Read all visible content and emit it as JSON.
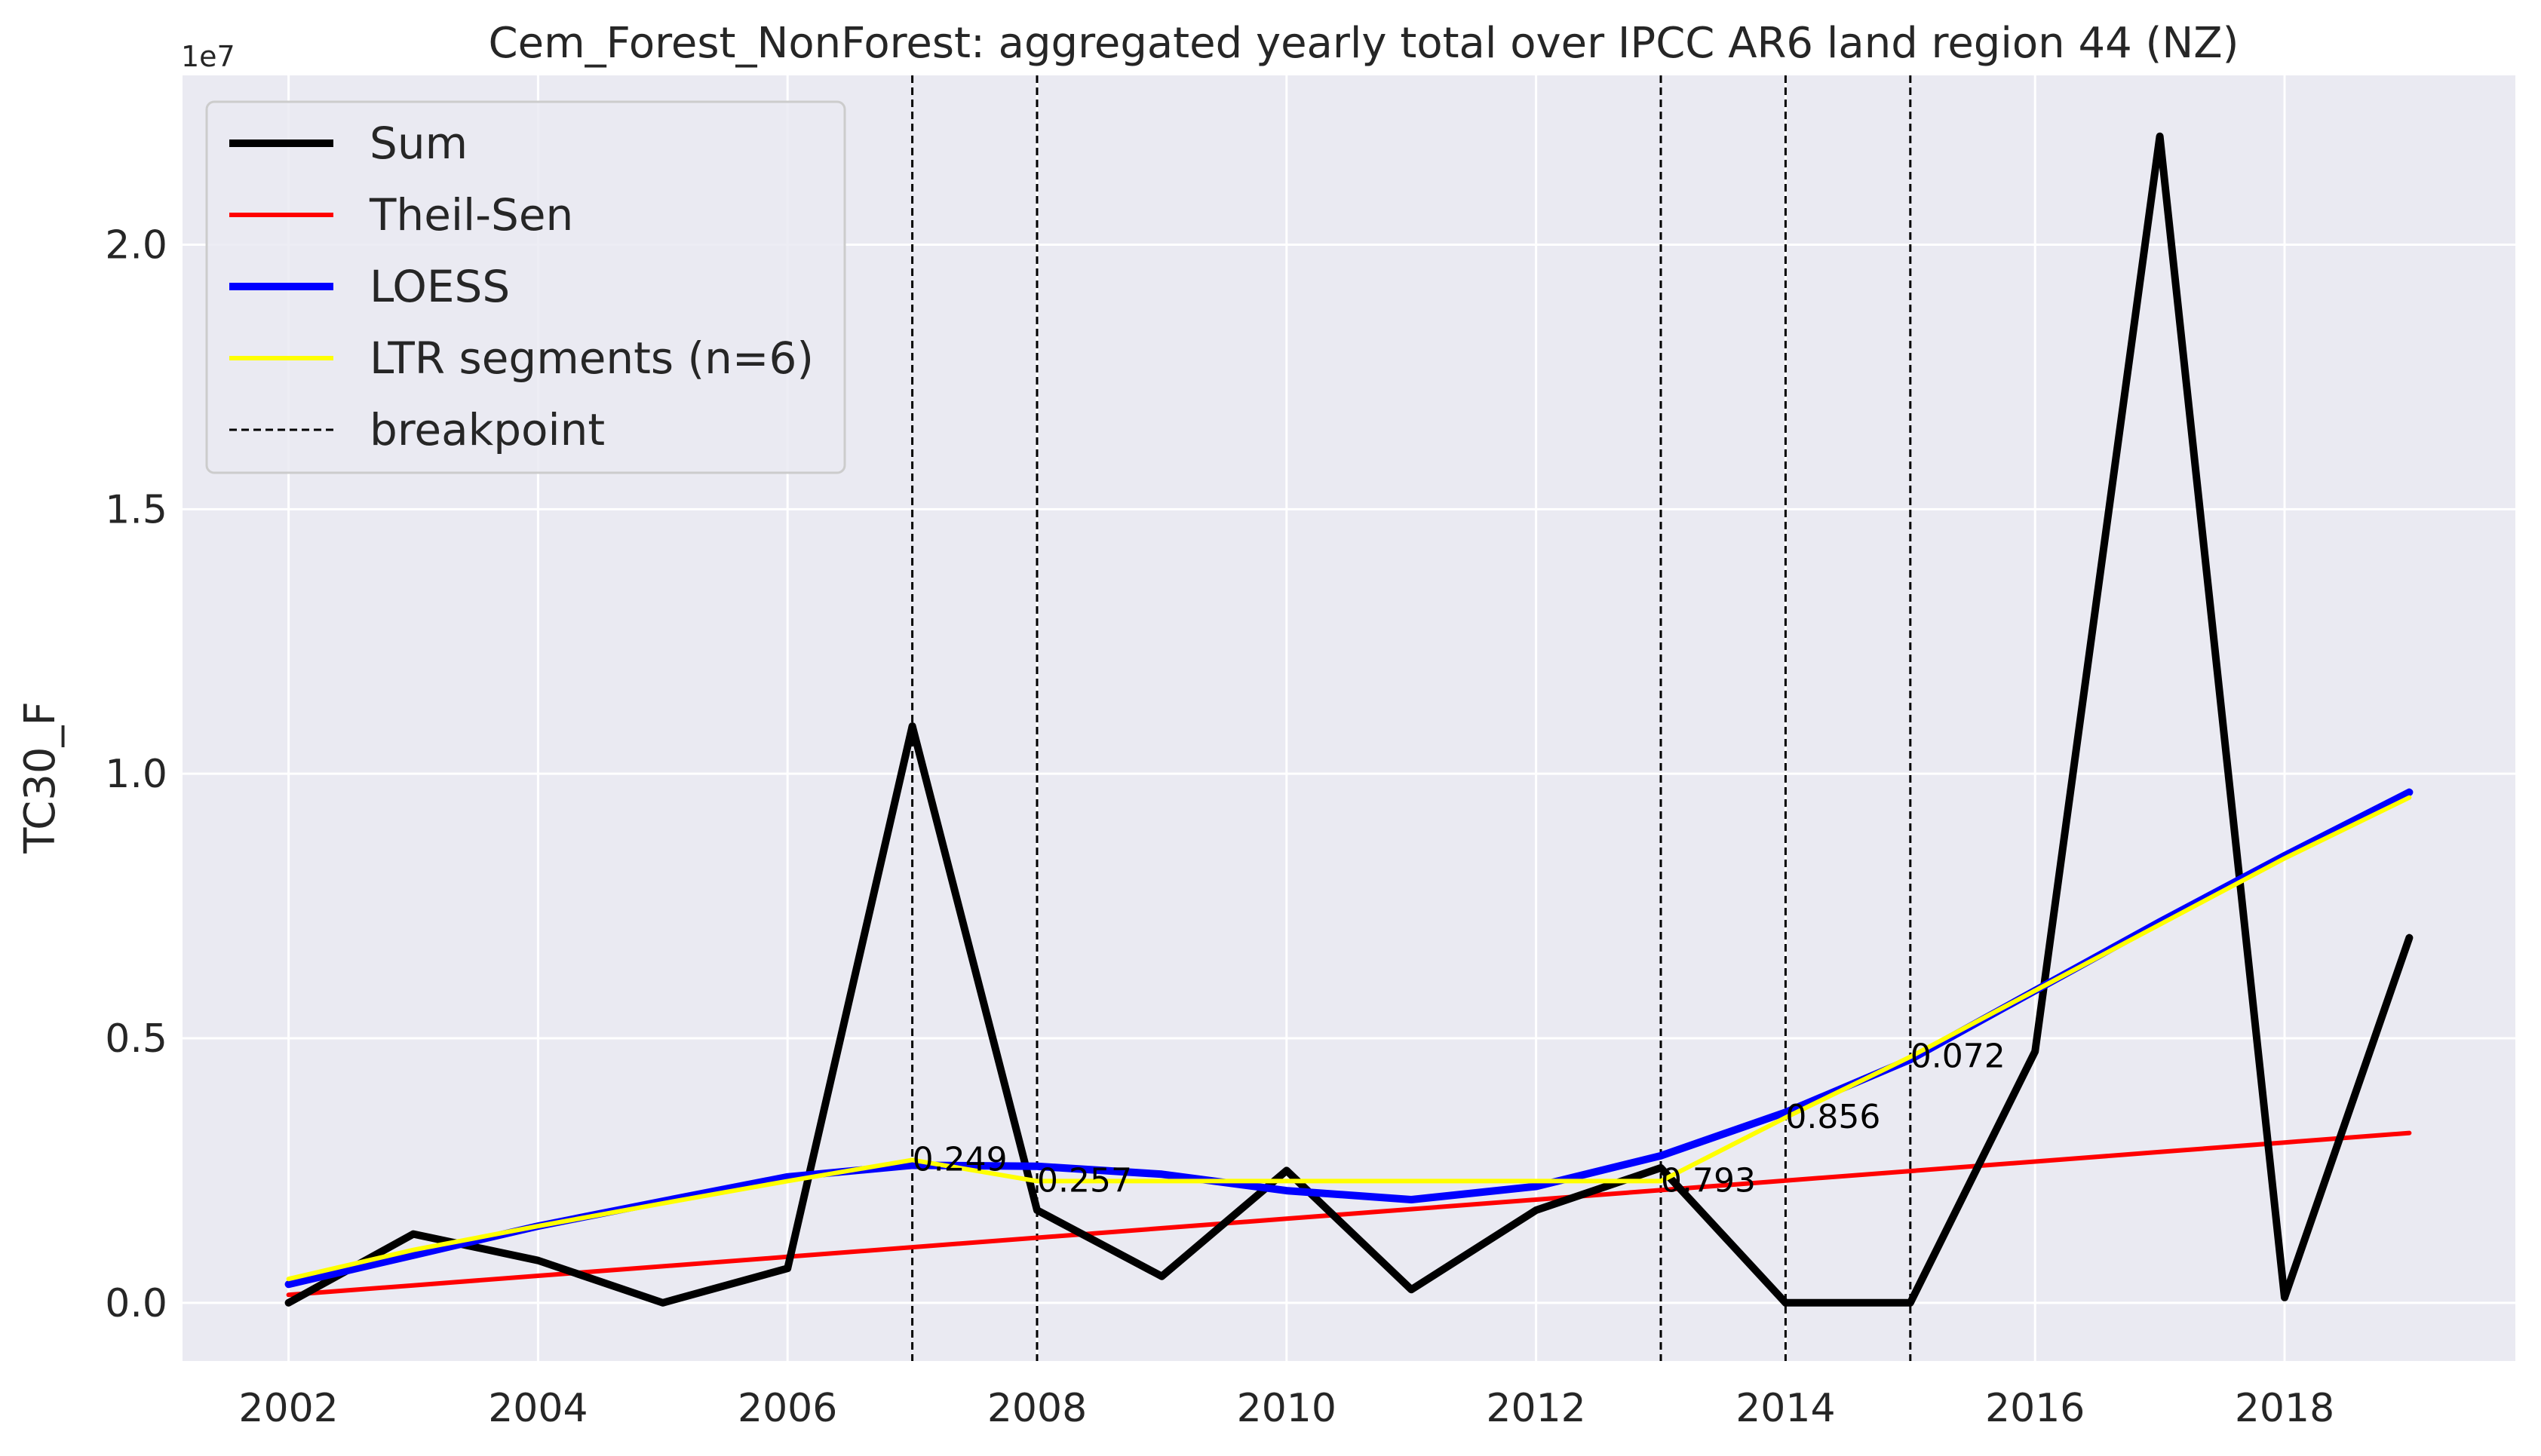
{
  "chart_data": {
    "type": "line",
    "title": "Cem_Forest_NonForest: aggregated yearly total over IPCC AR6 land region 44 (NZ)",
    "xlabel": "",
    "ylabel": "TC30_F",
    "y_offset_label": "1e7",
    "xlim": [
      2001.15,
      2019.85
    ],
    "ylim": [
      -1100000,
      23200000
    ],
    "x_ticks": [
      2002,
      2004,
      2006,
      2008,
      2010,
      2012,
      2014,
      2016,
      2018
    ],
    "x_tick_labels": [
      "2002",
      "2004",
      "2006",
      "2008",
      "2010",
      "2012",
      "2014",
      "2016",
      "2018"
    ],
    "y_ticks": [
      0,
      5000000,
      10000000,
      15000000,
      20000000
    ],
    "y_tick_labels": [
      "0.0",
      "0.5",
      "1.0",
      "1.5",
      "2.0"
    ],
    "grid": true,
    "legend_position": "top-left",
    "x": [
      2002,
      2003,
      2004,
      2005,
      2006,
      2007,
      2008,
      2009,
      2010,
      2011,
      2012,
      2013,
      2014,
      2015,
      2016,
      2017,
      2018,
      2019
    ],
    "series": [
      {
        "name": "Sum",
        "color": "#000000",
        "values": [
          0,
          1300000,
          800000,
          0,
          650000,
          10900000,
          1750000,
          500000,
          2500000,
          250000,
          1750000,
          2550000,
          0,
          0,
          4750000,
          22050000,
          100000,
          6900000
        ]
      },
      {
        "name": "Theil-Sen",
        "color": "#ff0000",
        "values": [
          150000,
          330000,
          510000,
          690000,
          870000,
          1050000,
          1230000,
          1410000,
          1590000,
          1770000,
          1950000,
          2130000,
          2310000,
          2490000,
          2670000,
          2850000,
          3030000,
          3210000
        ]
      },
      {
        "name": "LOESS",
        "color": "#0000ff",
        "values": [
          350000,
          900000,
          1450000,
          1920000,
          2380000,
          2600000,
          2580000,
          2430000,
          2120000,
          1950000,
          2200000,
          2780000,
          3600000,
          4600000,
          5900000,
          7200000,
          8450000,
          9650000
        ]
      },
      {
        "name": "LTR segments (n=6)",
        "color": "#ffff00",
        "values": [
          450000,
          1000000,
          1450000,
          1880000,
          2300000,
          2700000,
          2300000,
          2300000,
          2300000,
          2300000,
          2300000,
          2300000,
          3500000,
          4650000,
          5900000,
          7150000,
          8400000,
          9550000
        ]
      }
    ],
    "legend_labels": [
      "Sum",
      "Theil-Sen",
      "LOESS",
      "LTR segments (n=6)",
      "breakpoint"
    ],
    "breakpoints": [
      2007,
      2008,
      2013,
      2014,
      2015
    ],
    "breakpoint_label": "breakpoint",
    "annotations": [
      {
        "text": "0.249",
        "x": 2007,
        "y": 2700000
      },
      {
        "text": "0.257",
        "x": 2008,
        "y": 2300000
      },
      {
        "text": "0.793",
        "x": 2013,
        "y": 2300000
      },
      {
        "text": "0.856",
        "x": 2014,
        "y": 3500000
      },
      {
        "text": "0.072",
        "x": 2015,
        "y": 4650000
      }
    ],
    "colors": {
      "background": "#eaeaf2",
      "grid": "#ffffff",
      "breakpoint": "#000000"
    }
  }
}
